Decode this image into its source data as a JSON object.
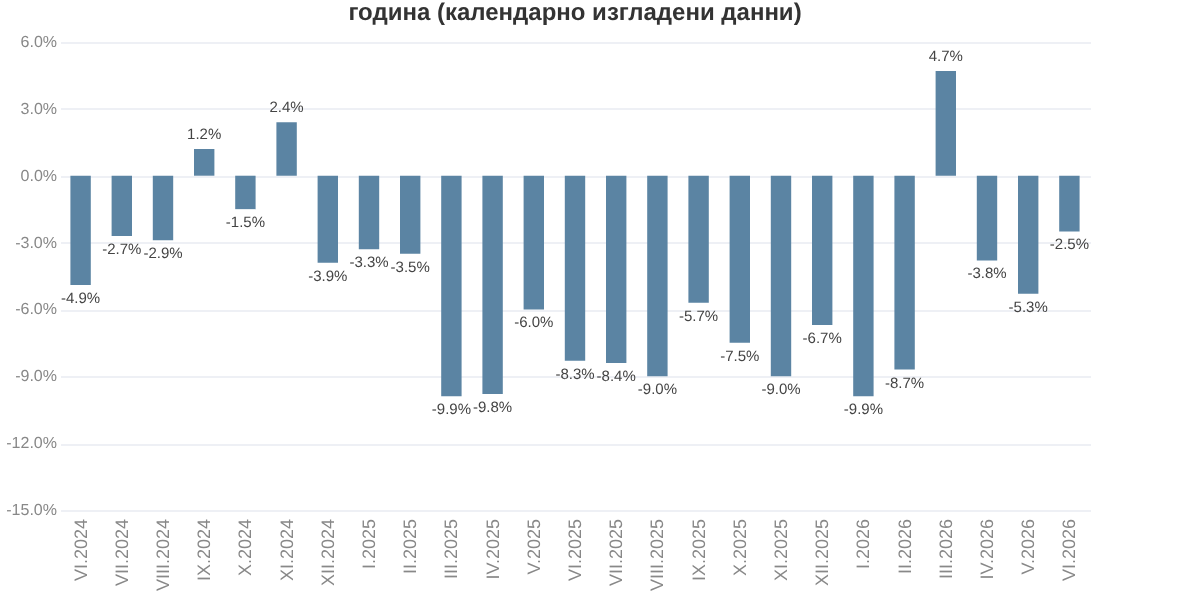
{
  "chart_data": {
    "type": "bar",
    "title": "година (календарно изгладени данни)",
    "categories": [
      "VI.2024",
      "VII.2024",
      "VIII.2024",
      "IX.2024",
      "X.2024",
      "XI.2024",
      "XII.2024",
      "I.2025",
      "II.2025",
      "III.2025",
      "IV.2025",
      "V.2025",
      "VI.2025",
      "VII.2025",
      "VIII.2025",
      "IX.2025",
      "X.2025",
      "XI.2025",
      "XII.2025",
      "I.2026",
      "II.2026",
      "III.2026",
      "IV.2026",
      "V.2026",
      "VI.2026"
    ],
    "values": [
      -4.9,
      -2.7,
      -2.9,
      1.2,
      -1.5,
      2.4,
      -3.9,
      -3.3,
      -3.5,
      -9.9,
      -9.8,
      -6.0,
      -8.3,
      -8.4,
      -9.0,
      -5.7,
      -7.5,
      -9.0,
      -6.7,
      -9.9,
      -8.7,
      4.7,
      -3.8,
      -5.3,
      -2.5
    ],
    "value_labels": [
      "-4.9%",
      "-2.7%",
      "-2.9%",
      "1.2%",
      "-1.5%",
      "2.4%",
      "-3.9%",
      "-3.3%",
      "-3.5%",
      "-9.9%",
      "-9.8%",
      "-6.0%",
      "-8.3%",
      "-8.4%",
      "-9.0%",
      "-5.7%",
      "-7.5%",
      "-9.0%",
      "-6.7%",
      "-9.9%",
      "-8.7%",
      "4.7%",
      "-3.8%",
      "-5.3%",
      "-2.5%"
    ],
    "color": "#5b84a3",
    "ylim": [
      -15,
      6
    ],
    "yticks": [
      {
        "value": 6,
        "label": "6.0%"
      },
      {
        "value": 3,
        "label": "3.0%"
      },
      {
        "value": 0,
        "label": "0.0%"
      },
      {
        "value": -3,
        "label": "-3.0%"
      },
      {
        "value": -6,
        "label": "-6.0%"
      },
      {
        "value": -9,
        "label": "-9.0%"
      },
      {
        "value": -12,
        "label": "-12.0%"
      },
      {
        "value": -15,
        "label": "-15.0%"
      }
    ],
    "grid": "y"
  }
}
